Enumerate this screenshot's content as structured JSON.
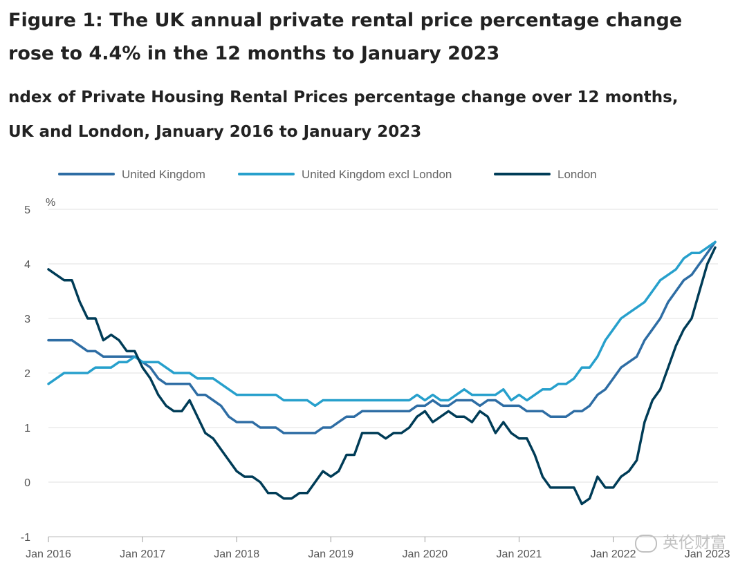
{
  "header": {
    "title_line1": "Figure 1: The UK annual private rental price percentage change",
    "title_line2": "rose to 4.4% in the 12 months to January 2023",
    "subtitle_line1": "ndex of Private Housing Rental Prices percentage change over 12 months,",
    "subtitle_line2": "UK and London, January 2016 to January 2023"
  },
  "watermark": {
    "text": "英伦财富"
  },
  "chart_data": {
    "type": "line",
    "title": "Figure 1: The UK annual private rental price percentage change rose to 4.4% in the 12 months to January 2023",
    "subtitle": "ndex of Private Housing Rental Prices percentage change over 12 months, UK and London, January 2016 to January 2023",
    "ylabel": "%",
    "xlabel": "",
    "ylim": [
      -1,
      5
    ],
    "yticks": [
      "-1",
      "0",
      "1",
      "2",
      "3",
      "4",
      "5"
    ],
    "xticks": [
      "Jan 2016",
      "Jan 2017",
      "Jan 2018",
      "Jan 2019",
      "Jan 2020",
      "Jan 2021",
      "Jan 2022",
      "Jan 2023"
    ],
    "x_start": "Jan 2016",
    "x_end": "Jan 2023",
    "points_per_year": 12,
    "legend_position": "top",
    "grid": true,
    "series": [
      {
        "name": "United Kingdom",
        "color": "#2e6da4",
        "values": [
          2.6,
          2.6,
          2.6,
          2.6,
          2.5,
          2.4,
          2.4,
          2.3,
          2.3,
          2.3,
          2.3,
          2.3,
          2.2,
          2.1,
          1.9,
          1.8,
          1.8,
          1.8,
          1.8,
          1.6,
          1.6,
          1.5,
          1.4,
          1.2,
          1.1,
          1.1,
          1.1,
          1.0,
          1.0,
          1.0,
          0.9,
          0.9,
          0.9,
          0.9,
          0.9,
          1.0,
          1.0,
          1.1,
          1.2,
          1.2,
          1.3,
          1.3,
          1.3,
          1.3,
          1.3,
          1.3,
          1.3,
          1.4,
          1.4,
          1.5,
          1.4,
          1.4,
          1.5,
          1.5,
          1.5,
          1.4,
          1.5,
          1.5,
          1.4,
          1.4,
          1.4,
          1.3,
          1.3,
          1.3,
          1.2,
          1.2,
          1.2,
          1.3,
          1.3,
          1.4,
          1.6,
          1.7,
          1.9,
          2.1,
          2.2,
          2.3,
          2.6,
          2.8,
          3.0,
          3.3,
          3.5,
          3.7,
          3.8,
          4.0,
          4.2,
          4.4
        ]
      },
      {
        "name": "United Kingdom excl London",
        "color": "#27a0cc",
        "values": [
          1.8,
          1.9,
          2.0,
          2.0,
          2.0,
          2.0,
          2.1,
          2.1,
          2.1,
          2.2,
          2.2,
          2.3,
          2.2,
          2.2,
          2.2,
          2.1,
          2.0,
          2.0,
          2.0,
          1.9,
          1.9,
          1.9,
          1.8,
          1.7,
          1.6,
          1.6,
          1.6,
          1.6,
          1.6,
          1.6,
          1.5,
          1.5,
          1.5,
          1.5,
          1.4,
          1.5,
          1.5,
          1.5,
          1.5,
          1.5,
          1.5,
          1.5,
          1.5,
          1.5,
          1.5,
          1.5,
          1.5,
          1.6,
          1.5,
          1.6,
          1.5,
          1.5,
          1.6,
          1.7,
          1.6,
          1.6,
          1.6,
          1.6,
          1.7,
          1.5,
          1.6,
          1.5,
          1.6,
          1.7,
          1.7,
          1.8,
          1.8,
          1.9,
          2.1,
          2.1,
          2.3,
          2.6,
          2.8,
          3.0,
          3.1,
          3.2,
          3.3,
          3.5,
          3.7,
          3.8,
          3.9,
          4.1,
          4.2,
          4.2,
          4.3,
          4.4
        ]
      },
      {
        "name": "London",
        "color": "#003c57",
        "values": [
          3.9,
          3.8,
          3.7,
          3.7,
          3.3,
          3.0,
          3.0,
          2.6,
          2.7,
          2.6,
          2.4,
          2.4,
          2.1,
          1.9,
          1.6,
          1.4,
          1.3,
          1.3,
          1.5,
          1.2,
          0.9,
          0.8,
          0.6,
          0.4,
          0.2,
          0.1,
          0.1,
          0.0,
          -0.2,
          -0.2,
          -0.3,
          -0.3,
          -0.2,
          -0.2,
          0.0,
          0.2,
          0.1,
          0.2,
          0.5,
          0.5,
          0.9,
          0.9,
          0.9,
          0.8,
          0.9,
          0.9,
          1.0,
          1.2,
          1.3,
          1.1,
          1.2,
          1.3,
          1.2,
          1.2,
          1.1,
          1.3,
          1.2,
          0.9,
          1.1,
          0.9,
          0.8,
          0.8,
          0.5,
          0.1,
          -0.1,
          -0.1,
          -0.1,
          -0.1,
          -0.4,
          -0.3,
          0.1,
          -0.1,
          -0.1,
          0.1,
          0.2,
          0.4,
          1.1,
          1.5,
          1.7,
          2.1,
          2.5,
          2.8,
          3.0,
          3.5,
          4.0,
          4.3
        ]
      }
    ]
  }
}
